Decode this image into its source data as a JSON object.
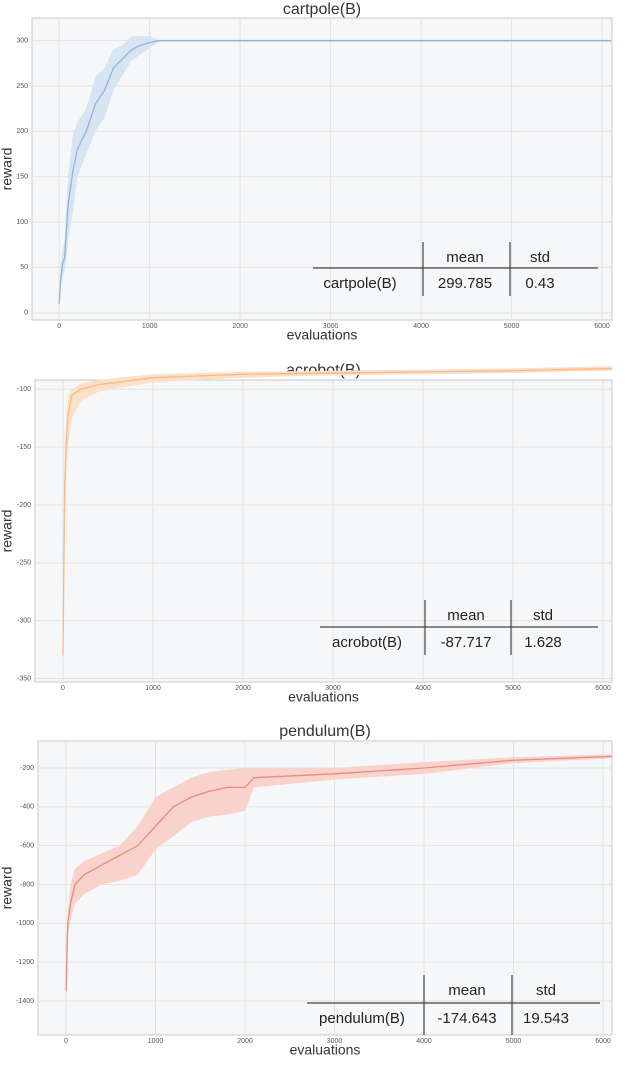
{
  "chart_data": [
    {
      "type": "line",
      "title": "cartpole(B)",
      "xlabel": "evaluations",
      "ylabel": "reward",
      "xlim": [
        -300,
        6110
      ],
      "ylim": [
        -8,
        325
      ],
      "xticks": [
        0,
        1000,
        2000,
        3000,
        4000,
        5000,
        6000
      ],
      "yticks": [
        0,
        50,
        100,
        150,
        200,
        250,
        300
      ],
      "grid": true,
      "x": [
        0,
        20,
        40,
        60,
        80,
        100,
        150,
        200,
        300,
        400,
        500,
        600,
        700,
        800,
        900,
        1000,
        1100,
        6100
      ],
      "series": [
        {
          "color": "#8fb3d9",
          "band_color": "#d6e4f3",
          "values": [
            10,
            40,
            55,
            60,
            90,
            120,
            155,
            180,
            200,
            230,
            245,
            270,
            280,
            290,
            295,
            298,
            300,
            300
          ],
          "lower": [
            5,
            30,
            40,
            45,
            60,
            80,
            110,
            150,
            175,
            200,
            215,
            245,
            262,
            278,
            285,
            292,
            299,
            299
          ],
          "upper": [
            20,
            55,
            70,
            80,
            120,
            150,
            195,
            210,
            225,
            260,
            270,
            290,
            295,
            305,
            305,
            305,
            301,
            301
          ]
        }
      ],
      "table": {
        "columns": [
          "mean",
          "std"
        ],
        "rows": [
          {
            "label": "cartpole(B)",
            "values": [
              299.785,
              0.43
            ]
          }
        ]
      }
    },
    {
      "type": "line",
      "title": "acrobot(B)",
      "xlabel": "evaluations",
      "ylabel": "reward",
      "xlim": [
        -311,
        6100
      ],
      "ylim": [
        -353,
        -92
      ],
      "xticks": [
        0,
        1000,
        2000,
        3000,
        4000,
        5000,
        6000
      ],
      "yticks": [
        -350,
        -300,
        -250,
        -200,
        -150,
        -100
      ],
      "grid": true,
      "x": [
        0,
        10,
        20,
        40,
        60,
        100,
        200,
        400,
        600,
        1000,
        2000,
        3000,
        4000,
        5000,
        6100
      ],
      "series": [
        {
          "color": "#f7b98a",
          "band_color": "#fde0c8",
          "values": [
            -330,
            -250,
            -180,
            -140,
            -120,
            -105,
            -100,
            -96,
            -94,
            -90,
            -87,
            -86,
            -85,
            -84,
            -82
          ],
          "lower": [
            -340,
            -290,
            -220,
            -170,
            -145,
            -125,
            -110,
            -102,
            -99,
            -94,
            -90,
            -88,
            -87,
            -86,
            -84
          ],
          "upper": [
            -300,
            -220,
            -150,
            -120,
            -105,
            -100,
            -95,
            -92,
            -90,
            -87,
            -85,
            -84,
            -83,
            -82,
            -80
          ]
        }
      ],
      "table": {
        "columns": [
          "mean",
          "std"
        ],
        "rows": [
          {
            "label": "acrobot(B)",
            "values": [
              -87.717,
              1.628
            ]
          }
        ]
      }
    },
    {
      "type": "line",
      "title": "pendulum(B)",
      "xlabel": "evaluations",
      "ylabel": "reward",
      "xlim": [
        -313,
        6100
      ],
      "ylim": [
        -1575,
        -61
      ],
      "xticks": [
        0,
        1000,
        2000,
        3000,
        4000,
        5000,
        6000
      ],
      "yticks": [
        -1400,
        -1200,
        -1000,
        -800,
        -600,
        -400,
        -200
      ],
      "grid": true,
      "x": [
        0,
        20,
        50,
        100,
        200,
        400,
        600,
        800,
        1000,
        1200,
        1400,
        1600,
        1800,
        2000,
        2100,
        3000,
        4000,
        5000,
        6100
      ],
      "series": [
        {
          "color": "#e98a7f",
          "band_color": "#f9d2cc",
          "values": [
            -1350,
            -1000,
            -900,
            -800,
            -750,
            -700,
            -650,
            -600,
            -500,
            -400,
            -350,
            -320,
            -300,
            -300,
            -250,
            -230,
            -200,
            -160,
            -140
          ],
          "lower": [
            -1400,
            -1050,
            -980,
            -900,
            -850,
            -800,
            -780,
            -750,
            -620,
            -550,
            -480,
            -450,
            -440,
            -420,
            -300,
            -260,
            -230,
            -175,
            -150
          ],
          "upper": [
            -1300,
            -950,
            -800,
            -720,
            -680,
            -640,
            -600,
            -500,
            -350,
            -300,
            -250,
            -220,
            -210,
            -200,
            -200,
            -200,
            -170,
            -145,
            -130
          ]
        }
      ],
      "table": {
        "columns": [
          "mean",
          "std"
        ],
        "rows": [
          {
            "label": "pendulum(B)",
            "values": [
              -174.643,
              19.543
            ]
          }
        ]
      }
    }
  ]
}
